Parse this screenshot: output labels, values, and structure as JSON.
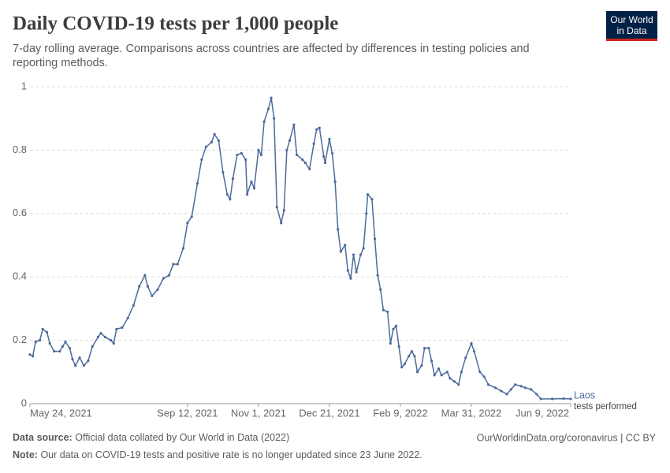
{
  "chart_data": {
    "type": "line",
    "title": "Daily COVID-19 tests per 1,000 people",
    "subtitle": [
      "7-day rolling average. Comparisons across countries are affected by differences in testing policies and",
      "reporting methods."
    ],
    "logo": [
      "Our World",
      "in Data"
    ],
    "x": [
      "2021-05-24",
      "2021-05-26",
      "2021-05-28",
      "2021-05-31",
      "2021-06-02",
      "2021-06-05",
      "2021-06-07",
      "2021-06-10",
      "2021-06-14",
      "2021-06-16",
      "2021-06-18",
      "2021-06-21",
      "2021-06-23",
      "2021-06-25",
      "2021-06-28",
      "2021-07-01",
      "2021-07-04",
      "2021-07-07",
      "2021-07-11",
      "2021-07-13",
      "2021-07-16",
      "2021-07-20",
      "2021-07-22",
      "2021-07-24",
      "2021-07-28",
      "2021-08-01",
      "2021-08-05",
      "2021-08-09",
      "2021-08-13",
      "2021-08-15",
      "2021-08-18",
      "2021-08-22",
      "2021-08-26",
      "2021-08-30",
      "2021-09-02",
      "2021-09-05",
      "2021-09-09",
      "2021-09-12",
      "2021-09-15",
      "2021-09-19",
      "2021-09-22",
      "2021-09-25",
      "2021-09-29",
      "2021-10-01",
      "2021-10-04",
      "2021-10-07",
      "2021-10-10",
      "2021-10-12",
      "2021-10-14",
      "2021-10-17",
      "2021-10-20",
      "2021-10-23",
      "2021-10-24",
      "2021-10-27",
      "2021-10-29",
      "2021-11-01",
      "2021-11-03",
      "2021-11-05",
      "2021-11-08",
      "2021-11-10",
      "2021-11-12",
      "2021-11-14",
      "2021-11-17",
      "2021-11-19",
      "2021-11-21",
      "2021-11-23",
      "2021-11-26",
      "2021-11-28",
      "2021-12-02",
      "2021-12-04",
      "2021-12-07",
      "2021-12-10",
      "2021-12-12",
      "2021-12-14",
      "2021-12-17",
      "2021-12-18",
      "2021-12-21",
      "2021-12-23",
      "2021-12-25",
      "2021-12-27",
      "2021-12-29",
      "2022-01-01",
      "2022-01-03",
      "2022-01-05",
      "2022-01-07",
      "2022-01-09",
      "2022-01-12",
      "2022-01-14",
      "2022-01-16",
      "2022-01-17",
      "2022-01-20",
      "2022-01-22",
      "2022-01-24",
      "2022-01-26",
      "2022-01-28",
      "2022-01-31",
      "2022-02-02",
      "2022-02-04",
      "2022-02-06",
      "2022-02-08",
      "2022-02-10",
      "2022-02-12",
      "2022-02-15",
      "2022-02-17",
      "2022-02-19",
      "2022-02-21",
      "2022-02-24",
      "2022-02-26",
      "2022-03-01",
      "2022-03-03",
      "2022-03-05",
      "2022-03-08",
      "2022-03-10",
      "2022-03-14",
      "2022-03-16",
      "2022-03-19",
      "2022-03-22",
      "2022-03-24",
      "2022-03-27",
      "2022-03-31",
      "2022-04-02",
      "2022-04-06",
      "2022-04-09",
      "2022-04-12",
      "2022-04-17",
      "2022-04-21",
      "2022-04-25",
      "2022-04-28",
      "2022-05-01",
      "2022-05-05",
      "2022-05-08",
      "2022-05-12",
      "2022-05-16",
      "2022-05-19",
      "2022-05-27",
      "2022-06-04",
      "2022-06-09"
    ],
    "series": [
      {
        "name": "Laos",
        "sublabel": "tests performed",
        "color": "#4c6a9c",
        "values": [
          0.155,
          0.15,
          0.195,
          0.2,
          0.235,
          0.225,
          0.19,
          0.165,
          0.165,
          0.18,
          0.195,
          0.175,
          0.14,
          0.12,
          0.145,
          0.12,
          0.135,
          0.18,
          0.21,
          0.222,
          0.21,
          0.2,
          0.19,
          0.235,
          0.24,
          0.27,
          0.31,
          0.37,
          0.405,
          0.37,
          0.34,
          0.36,
          0.395,
          0.405,
          0.44,
          0.44,
          0.49,
          0.57,
          0.59,
          0.695,
          0.77,
          0.81,
          0.825,
          0.85,
          0.83,
          0.73,
          0.66,
          0.645,
          0.71,
          0.785,
          0.79,
          0.77,
          0.66,
          0.7,
          0.68,
          0.8,
          0.785,
          0.89,
          0.93,
          0.965,
          0.9,
          0.62,
          0.57,
          0.61,
          0.8,
          0.83,
          0.88,
          0.785,
          0.77,
          0.76,
          0.74,
          0.82,
          0.865,
          0.87,
          0.78,
          0.76,
          0.835,
          0.79,
          0.7,
          0.55,
          0.48,
          0.5,
          0.42,
          0.395,
          0.47,
          0.415,
          0.47,
          0.49,
          0.6,
          0.66,
          0.645,
          0.52,
          0.405,
          0.36,
          0.295,
          0.29,
          0.19,
          0.235,
          0.245,
          0.18,
          0.115,
          0.125,
          0.15,
          0.165,
          0.15,
          0.1,
          0.12,
          0.175,
          0.175,
          0.135,
          0.09,
          0.11,
          0.09,
          0.1,
          0.08,
          0.07,
          0.06,
          0.1,
          0.145,
          0.19,
          0.165,
          0.1,
          0.085,
          0.06,
          0.05,
          0.04,
          0.03,
          0.045,
          0.06,
          0.055,
          0.05,
          0.045,
          0.03,
          0.015,
          0.015,
          0.016,
          0.015
        ]
      }
    ],
    "xlim": [
      "2021-05-24",
      "2022-06-09"
    ],
    "xticks": [
      {
        "value": "2021-05-24",
        "label": "May 24, 2021"
      },
      {
        "value": "2021-09-12",
        "label": "Sep 12, 2021"
      },
      {
        "value": "2021-11-01",
        "label": "Nov 1, 2021"
      },
      {
        "value": "2021-12-21",
        "label": "Dec 21, 2021"
      },
      {
        "value": "2022-02-09",
        "label": "Feb 9, 2022"
      },
      {
        "value": "2022-03-31",
        "label": "Mar 31, 2022"
      },
      {
        "value": "2022-06-09",
        "label": "Jun 9, 2022"
      }
    ],
    "ylim": [
      0,
      1
    ],
    "yticks": [
      0,
      0.2,
      0.4,
      0.6,
      0.8,
      1
    ],
    "grid": true,
    "source_label": "Data source:",
    "source": "Official data collated by Our World in Data (2022)",
    "credit": "OurWorldinData.org/coronavirus | CC BY",
    "note_label": "Note:",
    "note": "Our data on COVID-19 tests and positive rate is no longer updated since 23 June 2022."
  }
}
